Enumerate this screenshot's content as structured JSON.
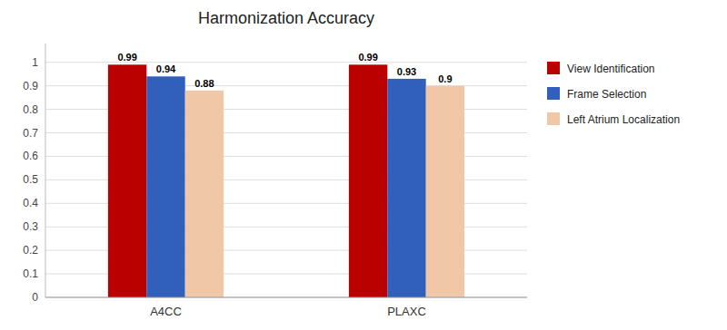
{
  "chart_data": {
    "type": "bar",
    "title": "Harmonization Accuracy",
    "categories": [
      "A4CC",
      "PLAXC"
    ],
    "series": [
      {
        "name": "View Identification",
        "color": "#BB0000",
        "values": [
          0.99,
          0.99
        ]
      },
      {
        "name": "Frame Selection",
        "color": "#3060BB",
        "values": [
          0.94,
          0.93
        ]
      },
      {
        "name": "Left Atrium Localization",
        "color": "#F0C8A8",
        "values": [
          0.88,
          0.9
        ]
      }
    ],
    "ylim": [
      0,
      1.08
    ],
    "yticks": [
      0,
      0.1,
      0.2,
      0.3,
      0.4,
      0.5,
      0.6,
      0.7,
      0.8,
      0.9,
      1
    ],
    "grid": true,
    "legend": "right",
    "data_labels": true
  }
}
